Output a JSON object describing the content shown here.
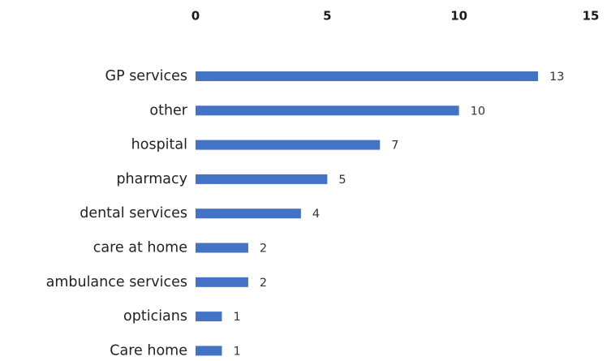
{
  "chart_data": {
    "type": "bar",
    "orientation": "horizontal",
    "title": "",
    "xlabel": "",
    "ylabel": "",
    "xlim": [
      0,
      15
    ],
    "x_ticks": [
      0,
      5,
      10,
      15
    ],
    "x_axis_position": "top",
    "grid": false,
    "legend": "none",
    "categories": [
      "GP services",
      "other",
      "hospital",
      "pharmacy",
      "dental services",
      "care at home",
      "ambulance services",
      "opticians",
      "Care home"
    ],
    "values": [
      13,
      10,
      7,
      5,
      4,
      2,
      2,
      1,
      1
    ],
    "bar_color": "#4472c4",
    "show_value_labels": true
  }
}
